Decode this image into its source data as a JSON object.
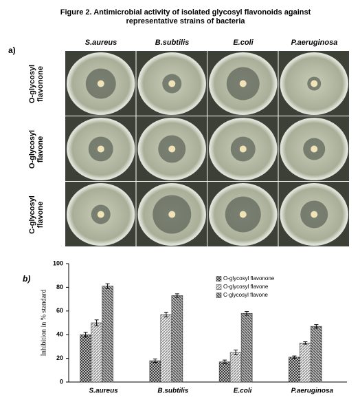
{
  "figure": {
    "title": "Figure 2. Antimicrobial activity of isolated glycosyl flavonoids against representative strains of bacteria",
    "panel_a": "a)",
    "panel_b": "b)",
    "columns": [
      "S.aureus",
      "B.subtilis",
      "E.coli",
      "P.aeruginosa"
    ],
    "rows": [
      "O-glycosyl flavonone",
      "O-glycosyl flavone",
      "C-glycosyl flavone"
    ]
  },
  "chart_data": {
    "type": "bar",
    "ylabel": "Inhibition in % standard",
    "categories": [
      "S.aureus",
      "B.subtilis",
      "E.coli",
      "P.aeruginosa"
    ],
    "series": [
      {
        "name": "O-glycosyl flavonone",
        "color": "#3a3a3a",
        "values": [
          40,
          18,
          17,
          21
        ],
        "errors": [
          2,
          1.5,
          1.5,
          1
        ]
      },
      {
        "name": "O-glycosyl flavone",
        "color": "#8a8a8a",
        "values": [
          50,
          57,
          25,
          33
        ],
        "errors": [
          2.5,
          2,
          2,
          1
        ]
      },
      {
        "name": "C-glycosyl flavone",
        "color": "#4a4a4a",
        "values": [
          81,
          73,
          58,
          47
        ],
        "errors": [
          2,
          1.5,
          1.5,
          1.5
        ]
      }
    ],
    "ylim": [
      0,
      100
    ],
    "yticks": [
      0,
      20,
      40,
      60,
      80,
      100
    ],
    "legend": "upper right"
  }
}
